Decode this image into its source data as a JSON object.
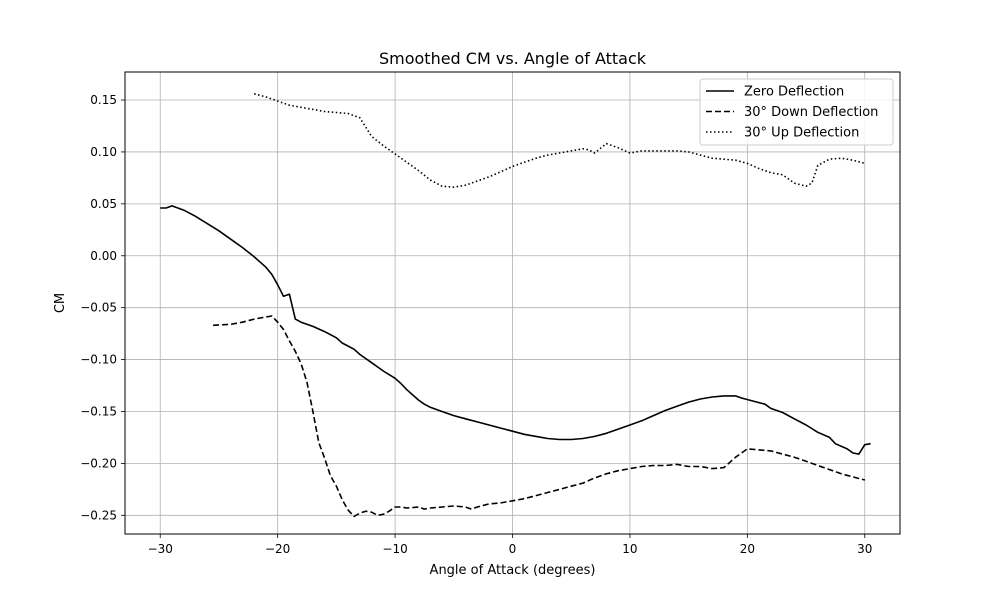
{
  "chart_data": {
    "type": "line",
    "title": "Smoothed CM vs. Angle of Attack",
    "xlabel": "Angle of Attack (degrees)",
    "ylabel": "CM",
    "xlim": [
      -33,
      33
    ],
    "ylim": [
      -0.268,
      0.177
    ],
    "grid": true,
    "legend_position": "top-right",
    "x_ticks": [
      -30,
      -20,
      -10,
      0,
      10,
      20,
      30
    ],
    "x_tick_labels": [
      "−30",
      "−20",
      "−10",
      "0",
      "10",
      "20",
      "30"
    ],
    "y_ticks": [
      0.15,
      0.1,
      0.05,
      0.0,
      -0.05,
      -0.1,
      -0.15,
      -0.2,
      -0.25
    ],
    "y_tick_labels": [
      "0.15",
      "0.10",
      "0.05",
      "0.00",
      "−0.05",
      "−0.10",
      "−0.15",
      "−0.20",
      "−0.25"
    ],
    "series": [
      {
        "name": "Zero Deflection",
        "style": "solid",
        "color": "#000000",
        "points": [
          [
            -30,
            0.046
          ],
          [
            -29.5,
            0.046
          ],
          [
            -29,
            0.048
          ],
          [
            -28,
            0.044
          ],
          [
            -27,
            0.038
          ],
          [
            -26,
            0.031
          ],
          [
            -25,
            0.024
          ],
          [
            -24,
            0.016
          ],
          [
            -23,
            0.008
          ],
          [
            -22,
            -0.001
          ],
          [
            -21,
            -0.011
          ],
          [
            -20.5,
            -0.018
          ],
          [
            -20,
            -0.028
          ],
          [
            -19.5,
            -0.039
          ],
          [
            -19,
            -0.037
          ],
          [
            -18.5,
            -0.061
          ],
          [
            -18,
            -0.064
          ],
          [
            -17,
            -0.068
          ],
          [
            -16,
            -0.073
          ],
          [
            -15,
            -0.079
          ],
          [
            -14.5,
            -0.084
          ],
          [
            -13.5,
            -0.09
          ],
          [
            -13,
            -0.095
          ],
          [
            -12,
            -0.103
          ],
          [
            -11,
            -0.111
          ],
          [
            -10,
            -0.118
          ],
          [
            -9.5,
            -0.123
          ],
          [
            -9,
            -0.129
          ],
          [
            -8,
            -0.139
          ],
          [
            -7.5,
            -0.143
          ],
          [
            -7,
            -0.146
          ],
          [
            -6,
            -0.15
          ],
          [
            -5,
            -0.154
          ],
          [
            -4,
            -0.157
          ],
          [
            -3,
            -0.16
          ],
          [
            -2,
            -0.163
          ],
          [
            -1,
            -0.166
          ],
          [
            0,
            -0.169
          ],
          [
            1,
            -0.172
          ],
          [
            2,
            -0.174
          ],
          [
            3,
            -0.176
          ],
          [
            4,
            -0.177
          ],
          [
            5,
            -0.177
          ],
          [
            6,
            -0.176
          ],
          [
            7,
            -0.174
          ],
          [
            8,
            -0.171
          ],
          [
            9,
            -0.167
          ],
          [
            10,
            -0.163
          ],
          [
            11,
            -0.159
          ],
          [
            12,
            -0.154
          ],
          [
            13,
            -0.149
          ],
          [
            14,
            -0.145
          ],
          [
            15,
            -0.141
          ],
          [
            16,
            -0.138
          ],
          [
            17,
            -0.136
          ],
          [
            18,
            -0.135
          ],
          [
            19,
            -0.135
          ],
          [
            19.5,
            -0.137
          ],
          [
            20.5,
            -0.14
          ],
          [
            21.5,
            -0.143
          ],
          [
            22,
            -0.147
          ],
          [
            23,
            -0.151
          ],
          [
            24,
            -0.157
          ],
          [
            25,
            -0.163
          ],
          [
            26,
            -0.17
          ],
          [
            27,
            -0.175
          ],
          [
            27.5,
            -0.181
          ],
          [
            28.5,
            -0.186
          ],
          [
            29,
            -0.19
          ],
          [
            29.5,
            -0.191
          ],
          [
            30,
            -0.182
          ],
          [
            30.5,
            -0.181
          ]
        ]
      },
      {
        "name": "30° Down Deflection",
        "style": "dashed",
        "color": "#000000",
        "points": [
          [
            -25.5,
            -0.067
          ],
          [
            -24,
            -0.066
          ],
          [
            -23,
            -0.064
          ],
          [
            -22,
            -0.061
          ],
          [
            -21,
            -0.059
          ],
          [
            -20.5,
            -0.058
          ],
          [
            -20,
            -0.064
          ],
          [
            -19.5,
            -0.071
          ],
          [
            -19,
            -0.082
          ],
          [
            -18.5,
            -0.092
          ],
          [
            -18,
            -0.104
          ],
          [
            -17.5,
            -0.122
          ],
          [
            -17,
            -0.15
          ],
          [
            -16.5,
            -0.18
          ],
          [
            -16,
            -0.195
          ],
          [
            -15.5,
            -0.212
          ],
          [
            -15,
            -0.222
          ],
          [
            -14.5,
            -0.235
          ],
          [
            -14,
            -0.245
          ],
          [
            -13.5,
            -0.251
          ],
          [
            -13,
            -0.248
          ],
          [
            -12.5,
            -0.246
          ],
          [
            -12,
            -0.247
          ],
          [
            -11.5,
            -0.25
          ],
          [
            -11,
            -0.249
          ],
          [
            -10.5,
            -0.246
          ],
          [
            -10,
            -0.242
          ],
          [
            -9.5,
            -0.242
          ],
          [
            -9,
            -0.243
          ],
          [
            -8,
            -0.242
          ],
          [
            -7.5,
            -0.244
          ],
          [
            -7,
            -0.243
          ],
          [
            -6,
            -0.242
          ],
          [
            -5,
            -0.241
          ],
          [
            -4,
            -0.242
          ],
          [
            -3.5,
            -0.244
          ],
          [
            -3,
            -0.242
          ],
          [
            -2,
            -0.239
          ],
          [
            -1,
            -0.238
          ],
          [
            0,
            -0.236
          ],
          [
            1,
            -0.234
          ],
          [
            2,
            -0.231
          ],
          [
            3,
            -0.228
          ],
          [
            4,
            -0.225
          ],
          [
            5,
            -0.222
          ],
          [
            6,
            -0.219
          ],
          [
            7,
            -0.214
          ],
          [
            8,
            -0.21
          ],
          [
            9,
            -0.207
          ],
          [
            10,
            -0.205
          ],
          [
            11,
            -0.203
          ],
          [
            12,
            -0.202
          ],
          [
            13,
            -0.202
          ],
          [
            14,
            -0.201
          ],
          [
            15,
            -0.203
          ],
          [
            16,
            -0.203
          ],
          [
            17,
            -0.205
          ],
          [
            18,
            -0.204
          ],
          [
            19,
            -0.194
          ],
          [
            20,
            -0.186
          ],
          [
            21,
            -0.187
          ],
          [
            22,
            -0.188
          ],
          [
            23,
            -0.191
          ],
          [
            24,
            -0.194
          ],
          [
            25,
            -0.198
          ],
          [
            26,
            -0.202
          ],
          [
            27,
            -0.206
          ],
          [
            28,
            -0.21
          ],
          [
            29,
            -0.213
          ],
          [
            30,
            -0.216
          ]
        ]
      },
      {
        "name": "30° Up Deflection",
        "style": "dotted",
        "color": "#000000",
        "points": [
          [
            -22,
            0.156
          ],
          [
            -21,
            0.153
          ],
          [
            -20,
            0.149
          ],
          [
            -19,
            0.145
          ],
          [
            -18,
            0.143
          ],
          [
            -17,
            0.141
          ],
          [
            -16,
            0.139
          ],
          [
            -15,
            0.138
          ],
          [
            -14,
            0.137
          ],
          [
            -13,
            0.133
          ],
          [
            -12.5,
            0.124
          ],
          [
            -12,
            0.115
          ],
          [
            -11,
            0.106
          ],
          [
            -10,
            0.098
          ],
          [
            -9,
            0.09
          ],
          [
            -8,
            0.082
          ],
          [
            -7,
            0.073
          ],
          [
            -6,
            0.067
          ],
          [
            -5,
            0.066
          ],
          [
            -4,
            0.068
          ],
          [
            -3,
            0.072
          ],
          [
            -2,
            0.076
          ],
          [
            -1,
            0.081
          ],
          [
            0,
            0.086
          ],
          [
            1,
            0.09
          ],
          [
            2,
            0.094
          ],
          [
            3,
            0.097
          ],
          [
            4,
            0.099
          ],
          [
            5,
            0.101
          ],
          [
            6,
            0.103
          ],
          [
            6.5,
            0.102
          ],
          [
            7,
            0.099
          ],
          [
            8,
            0.108
          ],
          [
            9,
            0.104
          ],
          [
            10,
            0.099
          ],
          [
            11,
            0.101
          ],
          [
            12,
            0.101
          ],
          [
            13,
            0.101
          ],
          [
            14,
            0.101
          ],
          [
            15,
            0.1
          ],
          [
            16,
            0.097
          ],
          [
            17,
            0.094
          ],
          [
            18,
            0.093
          ],
          [
            19,
            0.092
          ],
          [
            20,
            0.089
          ],
          [
            21,
            0.084
          ],
          [
            22,
            0.08
          ],
          [
            23,
            0.078
          ],
          [
            23.5,
            0.074
          ],
          [
            24,
            0.07
          ],
          [
            25,
            0.067
          ],
          [
            25.5,
            0.07
          ],
          [
            26,
            0.087
          ],
          [
            27,
            0.093
          ],
          [
            28,
            0.094
          ],
          [
            29,
            0.092
          ],
          [
            30,
            0.089
          ]
        ]
      }
    ]
  }
}
